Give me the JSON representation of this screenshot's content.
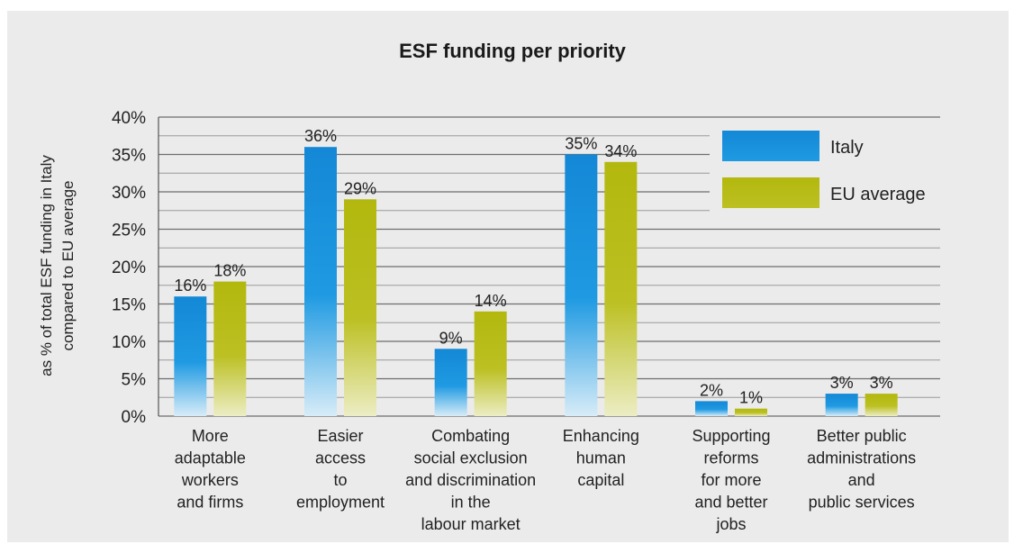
{
  "chart_data": {
    "type": "bar",
    "title": "ESF funding per priority",
    "ylabel": [
      "as % of total ESF funding in Italy",
      "compared to EU average"
    ],
    "xlabel": "",
    "ylim": [
      0,
      40
    ],
    "yticks": [
      "0%",
      "5%",
      "10%",
      "15%",
      "20%",
      "25%",
      "30%",
      "35%",
      "40%"
    ],
    "ytick_values": [
      0,
      5,
      10,
      15,
      20,
      25,
      30,
      35,
      40
    ],
    "categories": [
      [
        "More",
        "adaptable",
        "workers",
        "and firms"
      ],
      [
        "Easier",
        "access",
        "to",
        "employment"
      ],
      [
        "Combating",
        "social exclusion",
        "and discrimination",
        "in the",
        "labour market"
      ],
      [
        "Enhancing",
        "human",
        "capital"
      ],
      [
        "Supporting",
        "reforms",
        "for more",
        "and better",
        "jobs"
      ],
      [
        "Better public",
        "administrations",
        "and",
        "public services"
      ]
    ],
    "series": [
      {
        "name": "Italy",
        "color": "#1a8fdc",
        "values": [
          16,
          36,
          9,
          35,
          2,
          3
        ],
        "labels": [
          "16%",
          "36%",
          "9%",
          "35%",
          "2%",
          "3%"
        ]
      },
      {
        "name": "EU average",
        "color": "#b7bb12",
        "values": [
          18,
          29,
          14,
          34,
          1,
          3
        ],
        "labels": [
          "18%",
          "29%",
          "14%",
          "34%",
          "1%",
          "3%"
        ]
      }
    ],
    "grid": true,
    "legend_position": "top-right"
  }
}
